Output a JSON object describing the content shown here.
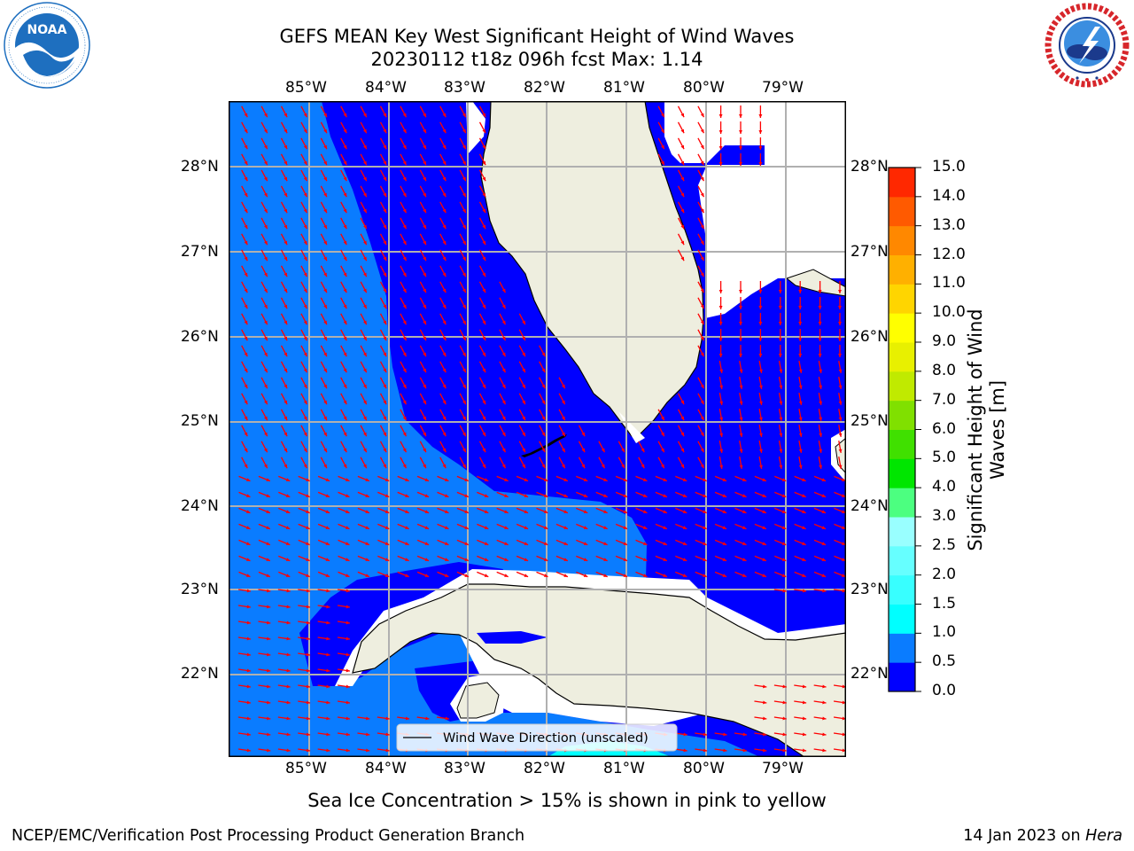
{
  "title": {
    "line1": "GEFS MEAN Key West Significant Height of Wind Waves",
    "line2": "20230112 t18z 096h fcst   Max: 1.14"
  },
  "logos": {
    "noaa": {
      "text": "NOAA",
      "ring_text": "NATIONAL OCEANIC AND ATMOSPHERIC ADMINISTRATION · U.S. DEPARTMENT OF COMMERCE",
      "color": "#1e6fbf"
    },
    "nws": {
      "ring_text": "NATIONAL WEATHER SERVICE",
      "color": "#d7262b"
    }
  },
  "map": {
    "lon_labels": [
      "85°W",
      "84°W",
      "83°W",
      "82°W",
      "81°W",
      "80°W",
      "79°W"
    ],
    "lat_labels": [
      "28°N",
      "27°N",
      "26°N",
      "25°N",
      "24°N",
      "23°N",
      "22°N"
    ],
    "legend_label": "Wind Wave Direction (unscaled)",
    "colors": {
      "band_0_0_5": "#0000ff",
      "band_0_5_1_0": "#0a7cff",
      "band_1_0_1_5": "#00ffff",
      "land": "#eeeedf",
      "grid": "#b0b0b0",
      "arrow": "#ff0000"
    }
  },
  "colorbar": {
    "label": "Significant Height of Wind Waves [m]",
    "label_line1": "Significant Height of Wind",
    "label_line2": "Waves [m]",
    "ticks": [
      "0.0",
      "0.5",
      "1.0",
      "1.5",
      "2.0",
      "2.5",
      "3.0",
      "4.0",
      "5.0",
      "6.0",
      "7.0",
      "8.0",
      "9.0",
      "10.0",
      "11.0",
      "12.0",
      "13.0",
      "14.0",
      "15.0"
    ],
    "colors": [
      "#0000ff",
      "#0a7cff",
      "#00ffff",
      "#38ffff",
      "#66ffff",
      "#99ffff",
      "#4cff80",
      "#00e600",
      "#40e000",
      "#80e000",
      "#c0ea00",
      "#e8f000",
      "#ffff00",
      "#ffd500",
      "#ffb000",
      "#ff8800",
      "#ff5a00",
      "#ff2800"
    ]
  },
  "note": "Sea Ice Concentration > 15% is shown in pink to yellow",
  "footer": {
    "left": "NCEP/EMC/Verification Post Processing Product Generation Branch",
    "right_date": "14 Jan 2023 on ",
    "right_host": "Hera"
  }
}
